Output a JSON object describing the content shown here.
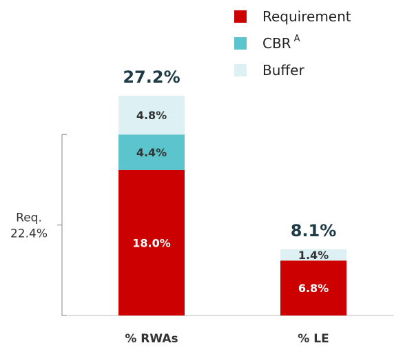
{
  "chart_data": {
    "type": "bar",
    "stacked": true,
    "categories": [
      "% RWAs",
      "% LE"
    ],
    "series": [
      {
        "name": "Requirement",
        "color": "#CC0000",
        "values": [
          18.0,
          6.8
        ],
        "labels": [
          "18.0%",
          "6.8%"
        ]
      },
      {
        "name": "CBR",
        "name_superscript": "A",
        "color": "#5BC4CC",
        "values": [
          4.4,
          null
        ],
        "labels": [
          "4.4%",
          ""
        ]
      },
      {
        "name": "Buffer",
        "color": "#DDF1F4",
        "values": [
          4.8,
          1.4
        ],
        "labels": [
          "4.8%",
          "1.4%"
        ]
      }
    ],
    "totals": [
      "27.2%",
      "8.1%"
    ],
    "ylim": [
      0,
      27.2
    ],
    "bracket": {
      "label_line1": "Req.",
      "label_line2": "22.4%",
      "from": 0,
      "to": 22.4
    },
    "legend_position": "top-right",
    "grid": false
  }
}
